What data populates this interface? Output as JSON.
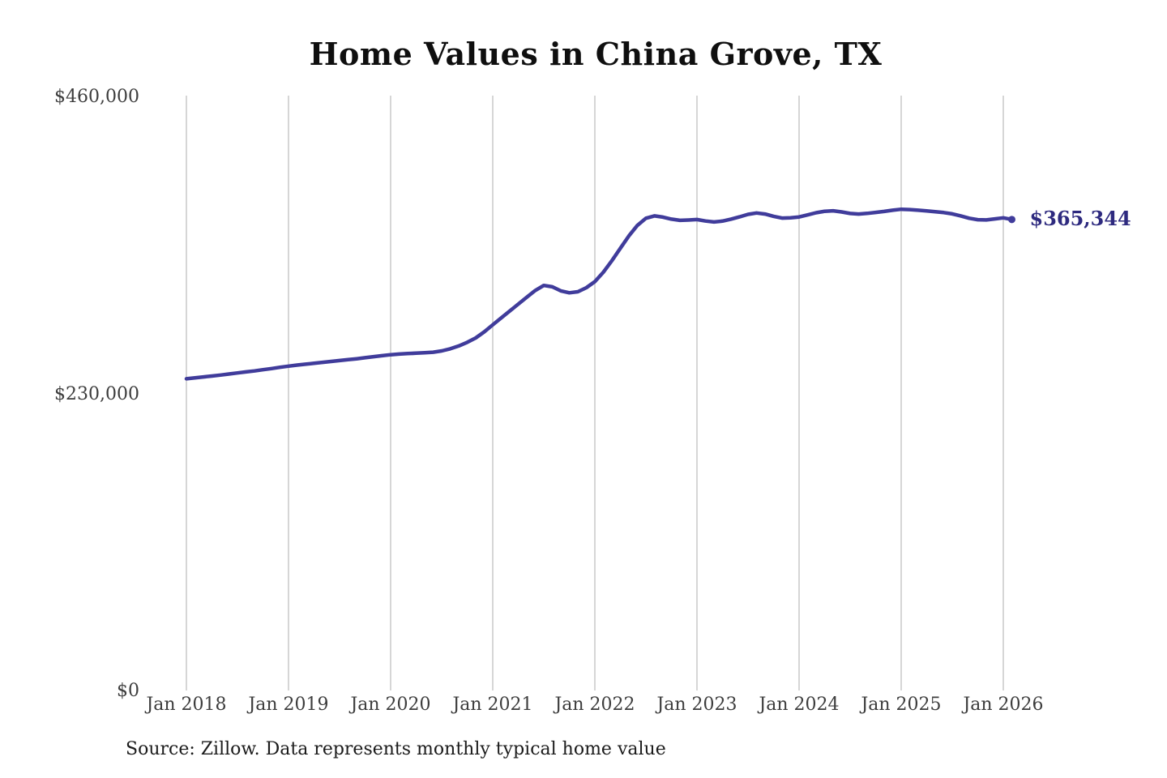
{
  "chart_data": {
    "type": "line",
    "title": "Home Values in China Grove, TX",
    "source_note": "Source: Zillow. Data represents monthly typical home value",
    "end_label": "$365,344",
    "end_value": 365344,
    "x_tick_labels": [
      "Jan 2018",
      "Jan 2019",
      "Jan 2020",
      "Jan 2021",
      "Jan 2022",
      "Jan 2023",
      "Jan 2024",
      "Jan 2025",
      "Jan 2026"
    ],
    "y_ticks": [
      {
        "value": 0,
        "label": "$0"
      },
      {
        "value": 230000,
        "label": "$230,000"
      },
      {
        "value": 460000,
        "label": "$460,000"
      }
    ],
    "ylim": [
      0,
      460000
    ],
    "x_start": "Jan 2018",
    "x_interval": "monthly",
    "grid": "vertical-only",
    "legend": "none",
    "values": [
      242000,
      242700,
      243400,
      244100,
      244900,
      245700,
      246500,
      247300,
      248100,
      249000,
      249900,
      250900,
      251800,
      252600,
      253300,
      254000,
      254700,
      255400,
      256100,
      256800,
      257500,
      258300,
      259100,
      259900,
      260600,
      261100,
      261500,
      261800,
      262100,
      262600,
      263600,
      265200,
      267400,
      270200,
      273600,
      278300,
      283800,
      289200,
      294500,
      299800,
      305200,
      310400,
      314300,
      313200,
      310100,
      308600,
      309400,
      312500,
      317200,
      324500,
      333400,
      343100,
      352600,
      360800,
      366300,
      368100,
      367200,
      365600,
      364700,
      364900,
      365300,
      364200,
      363400,
      364100,
      365600,
      367400,
      369300,
      370400,
      369600,
      367800,
      366400,
      366700,
      367300,
      368900,
      370600,
      371700,
      372100,
      371200,
      370000,
      369600,
      370100,
      370800,
      371600,
      372500,
      373300,
      373000,
      372500,
      372000,
      371400,
      370700,
      369700,
      368100,
      366300,
      365200,
      365000,
      365800,
      366600,
      365344
    ],
    "colors": {
      "line": "#403C9B",
      "end_label": "#2E2A7F",
      "gridline": "#CCCCCC",
      "tick_text": "#3D3D3D",
      "title_text": "#0F0F0F",
      "source_text": "#1B1B1B"
    }
  }
}
